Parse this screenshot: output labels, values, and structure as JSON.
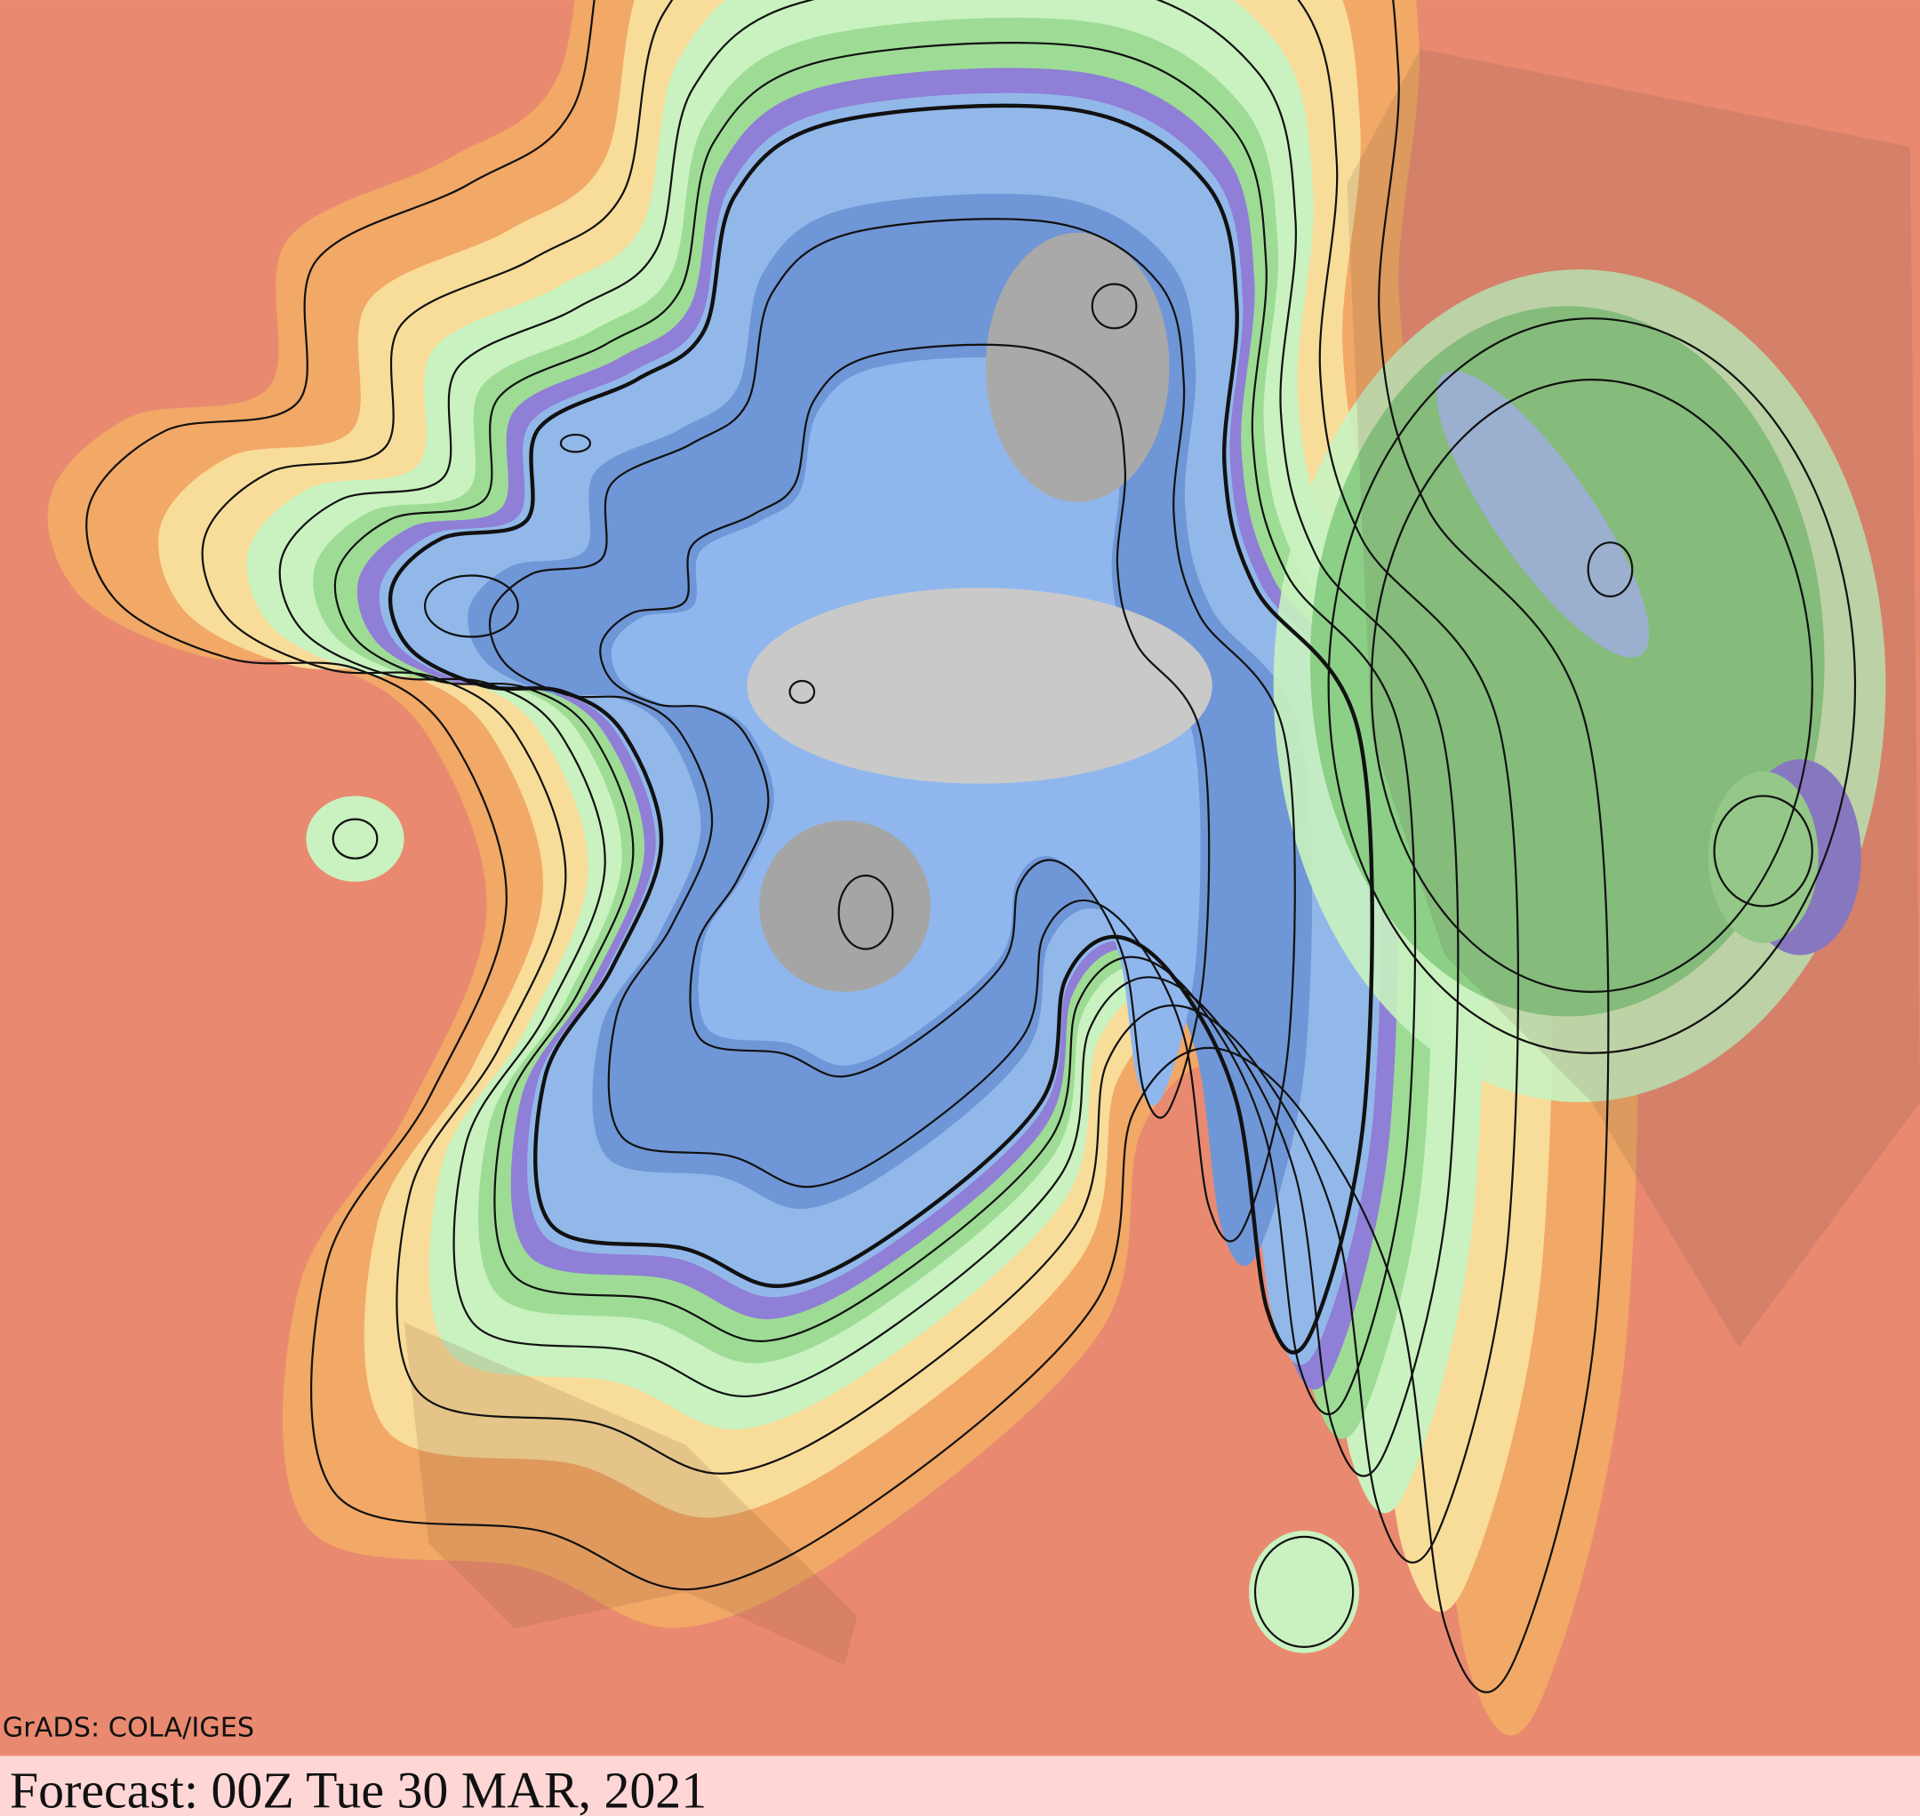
{
  "map": {
    "credit": "GrADS: COLA/IGES",
    "forecast": "Forecast: 00Z Tue 30 MAR, 2021"
  }
}
